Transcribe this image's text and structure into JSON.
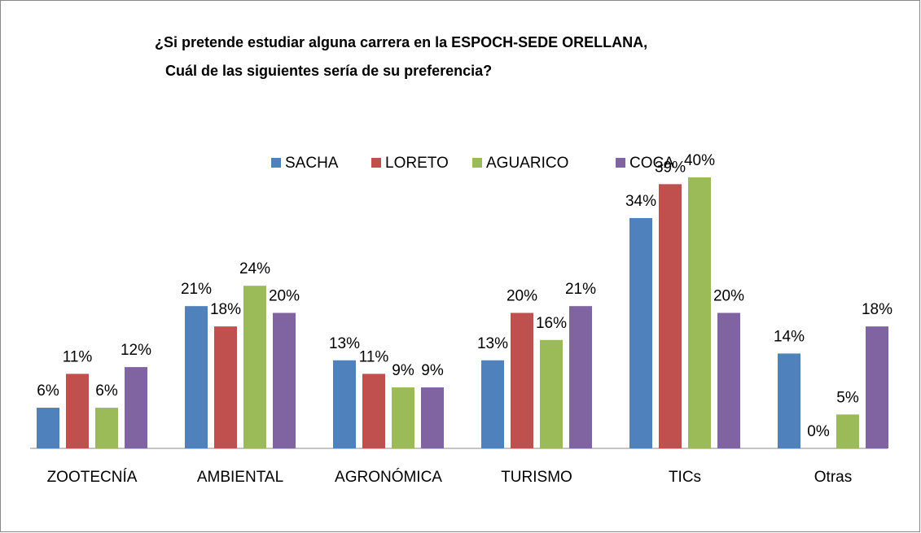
{
  "chart_data": {
    "type": "bar",
    "title": [
      "¿Si pretende estudiar alguna carrera en la ESPOCH-SEDE ORELLANA,",
      "Cuál de las siguientes sería de su preferencia?"
    ],
    "categories": [
      "ZOOTECNÍA",
      "AMBIENTAL",
      "AGRONÓMICA",
      "TURISMO",
      "TICs",
      "Otras"
    ],
    "series": [
      {
        "name": "SACHA",
        "color": "#4f81bd",
        "values": [
          6,
          21,
          13,
          13,
          34,
          14
        ],
        "value_labels": [
          "6%",
          "21%",
          "13%",
          "13%",
          "34%",
          "14%"
        ]
      },
      {
        "name": "LORETO",
        "color": "#c0504d",
        "values": [
          11,
          18,
          11,
          20,
          39,
          0
        ],
        "value_labels": [
          "11%",
          "18%",
          "11%",
          "20%",
          "39%",
          "0%"
        ]
      },
      {
        "name": "AGUARICO",
        "color": "#9bbb59",
        "values": [
          6,
          24,
          9,
          16,
          40,
          5
        ],
        "value_labels": [
          "6%",
          "24%",
          "9%",
          "16%",
          "40%",
          "5%"
        ]
      },
      {
        "name": "COCA",
        "color": "#8064a2",
        "values": [
          12,
          20,
          9,
          21,
          20,
          18
        ],
        "value_labels": [
          "12%",
          "20%",
          "9%",
          "21%",
          "20%",
          "18%"
        ]
      }
    ],
    "legend": "top"
  }
}
